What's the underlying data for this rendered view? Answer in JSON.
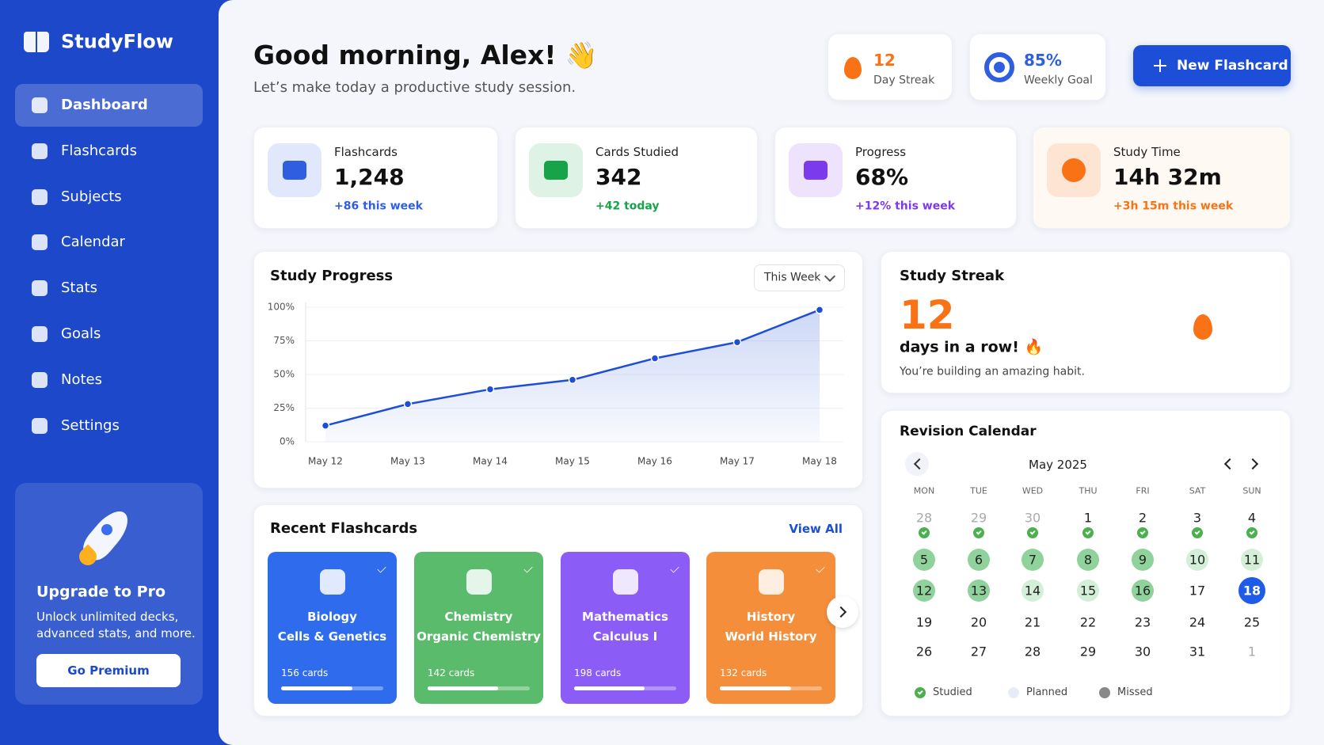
{
  "sidebar": {
    "brand": "StudyFlow",
    "nav": [
      "Dashboard",
      "Flashcards",
      "Subjects",
      "Calendar",
      "Stats",
      "Goals",
      "Notes",
      "Settings"
    ],
    "active": 0,
    "promo": {
      "title": "Upgrade to Pro",
      "text": [
        "Unlock unlimited decks,",
        "advanced stats, and more."
      ],
      "button": "Go Premium"
    }
  },
  "header": {
    "greeting": "Good morning, Alex! 👋",
    "subtitle": "Let’s make today a productive study session.",
    "streak": {
      "value": "12",
      "label": "Day Streak"
    },
    "goal": {
      "value": "85%",
      "label": "Weekly Goal"
    },
    "button": "New Flashcard"
  },
  "stats": [
    {
      "label": "Flashcards",
      "value": "1,248",
      "change": "+86 this week",
      "color": "#2f5fe0"
    },
    {
      "label": "Cards Studied",
      "value": "342",
      "change": "+42 today",
      "color": "#16a34a"
    },
    {
      "label": "Progress",
      "value": "68%",
      "change": "+12% this week",
      "color": "#7c3aed"
    },
    {
      "label": "Study Time",
      "value": "14h 32m",
      "change": "+3h 15m this week",
      "color": "#f97316"
    }
  ],
  "chart_data": {
    "type": "line",
    "title": "Study Progress",
    "period": "This Week",
    "categories": [
      "May 12",
      "May 13",
      "May 14",
      "May 15",
      "May 16",
      "May 17",
      "May 18"
    ],
    "values": [
      12,
      28,
      39,
      46,
      62,
      74,
      98
    ],
    "color": "#1d4ed8",
    "ylim": [
      0,
      100
    ],
    "yticks": [
      {
        "value": 0,
        "label": "0%"
      },
      {
        "value": 25,
        "label": "25%"
      },
      {
        "value": 50,
        "label": "50%"
      },
      {
        "value": 75,
        "label": "75%"
      },
      {
        "value": 100,
        "label": "100%"
      }
    ],
    "grid": true
  },
  "streak": {
    "title": "Study Streak",
    "value": "12",
    "text": "days in a row! 🔥",
    "note": "You’re building an amazing habit.",
    "color": "#f97316"
  },
  "recent": {
    "title": "Recent Flashcards",
    "link": "View All",
    "cards": [
      {
        "subject": "Biology",
        "topic": "Cells & Genetics",
        "count": "156 cards",
        "progress": 70,
        "color": "#2f6ced"
      },
      {
        "subject": "Chemistry",
        "topic": "Organic Chemistry",
        "count": "142 cards",
        "progress": 69,
        "color": "#5bbb6c"
      },
      {
        "subject": "Mathematics",
        "topic": "Calculus I",
        "count": "198 cards",
        "progress": 69,
        "color": "#8b5cf6"
      },
      {
        "subject": "History",
        "topic": "World History",
        "count": "132 cards",
        "progress": 70,
        "color": "#f58e3a"
      }
    ]
  },
  "calendar": {
    "title": "Revision Calendar",
    "month": "May 2025",
    "weekdays": [
      "MON",
      "TUE",
      "WED",
      "THU",
      "FRI",
      "SAT",
      "SUN"
    ],
    "weeks": [
      [
        {
          "day": "28",
          "status": "check",
          "muted": true
        },
        {
          "day": "29",
          "status": "check",
          "muted": true
        },
        {
          "day": "30",
          "status": "check",
          "muted": true
        },
        {
          "day": "1",
          "status": "check"
        },
        {
          "day": "2",
          "status": "check"
        },
        {
          "day": "3",
          "status": "check"
        },
        {
          "day": "4",
          "status": "check"
        }
      ],
      [
        {
          "day": "5",
          "status": "strong"
        },
        {
          "day": "6",
          "status": "strong"
        },
        {
          "day": "7",
          "status": "strong"
        },
        {
          "day": "8",
          "status": "strong"
        },
        {
          "day": "9",
          "status": "strong"
        },
        {
          "day": "10",
          "status": "light"
        },
        {
          "day": "11",
          "status": "light"
        }
      ],
      [
        {
          "day": "12",
          "status": "strong"
        },
        {
          "day": "13",
          "status": "strong"
        },
        {
          "day": "14",
          "status": "light"
        },
        {
          "day": "15",
          "status": "light"
        },
        {
          "day": "16",
          "status": "strong"
        },
        {
          "day": "17",
          "status": "none"
        },
        {
          "day": "18",
          "status": "today"
        }
      ],
      [
        {
          "day": "19",
          "status": "none"
        },
        {
          "day": "20",
          "status": "none"
        },
        {
          "day": "21",
          "status": "none"
        },
        {
          "day": "22",
          "status": "none"
        },
        {
          "day": "23",
          "status": "none"
        },
        {
          "day": "24",
          "status": "none"
        },
        {
          "day": "25",
          "status": "none"
        }
      ],
      [
        {
          "day": "26",
          "status": "none"
        },
        {
          "day": "27",
          "status": "none"
        },
        {
          "day": "28",
          "status": "none"
        },
        {
          "day": "29",
          "status": "none"
        },
        {
          "day": "30",
          "status": "none"
        },
        {
          "day": "31",
          "status": "none"
        },
        {
          "day": "1",
          "status": "none",
          "muted": true
        }
      ]
    ],
    "legend": [
      "Studied",
      "Planned",
      "Missed"
    ]
  }
}
